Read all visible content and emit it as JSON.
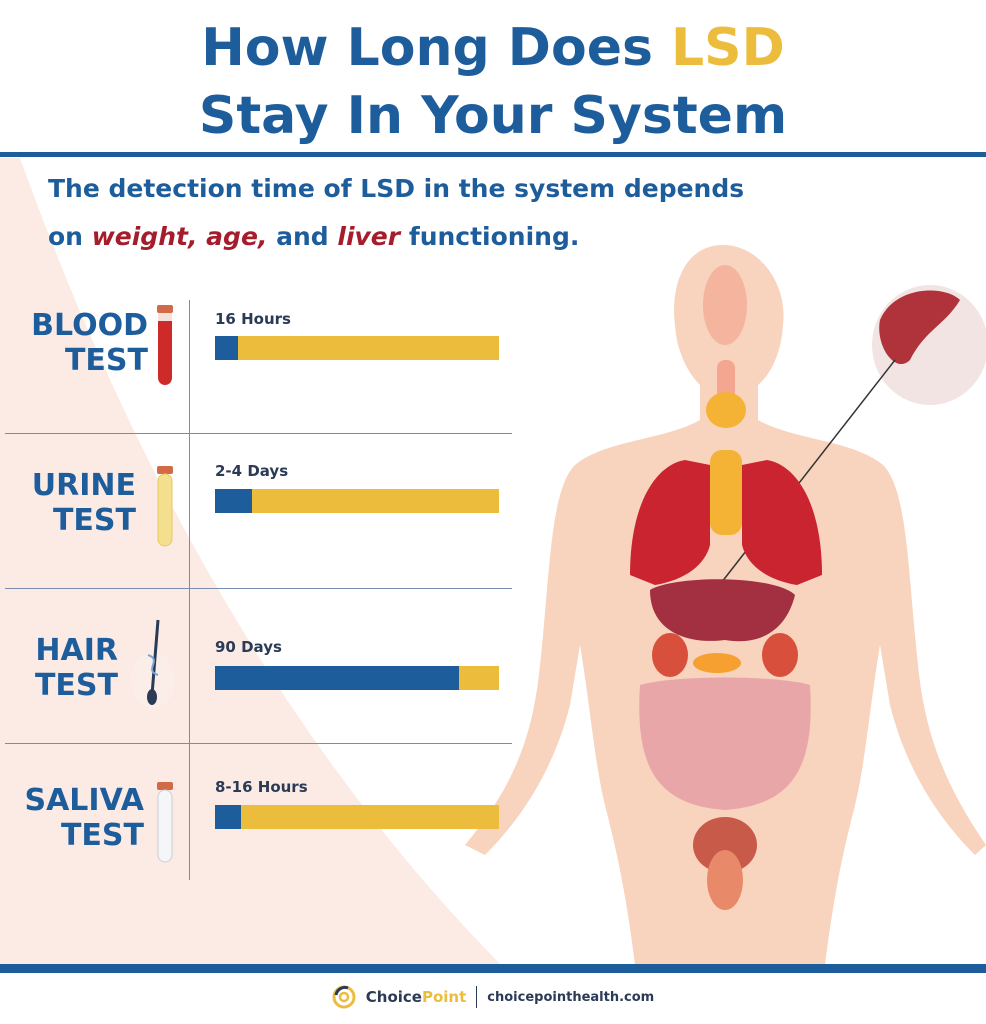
{
  "title": {
    "line1_prefix": "How Long Does ",
    "line1_highlight": "LSD",
    "line2": "Stay In Your System"
  },
  "subtitle": {
    "line1": "The detection time of LSD in the system depends",
    "line2_prefix": "on ",
    "weight": "weight,",
    "age": "age,",
    "and": " and ",
    "liver": "liver",
    "suffix": " functioning."
  },
  "colors": {
    "primary": "#1e5d9c",
    "accent": "#ecbd3c",
    "emphasis": "#a51d2d"
  },
  "tests": [
    {
      "label1": "BLOOD",
      "label2": "TEST",
      "value": "16 Hours",
      "fill_percent": 8,
      "icon": "blood-tube-icon"
    },
    {
      "label1": "URINE",
      "label2": "TEST",
      "value": "2-4 Days",
      "fill_percent": 13,
      "icon": "urine-tube-icon"
    },
    {
      "label1": "HAIR",
      "label2": "TEST",
      "value": "90 Days",
      "fill_percent": 86,
      "icon": "hair-follicle-icon"
    },
    {
      "label1": "SALIVA",
      "label2": "TEST",
      "value": "8-16 Hours",
      "fill_percent": 9,
      "icon": "saliva-tube-icon"
    }
  ],
  "footer": {
    "brand_a": "Choice",
    "brand_b": "Point",
    "url": "choicepointhealth.com"
  }
}
